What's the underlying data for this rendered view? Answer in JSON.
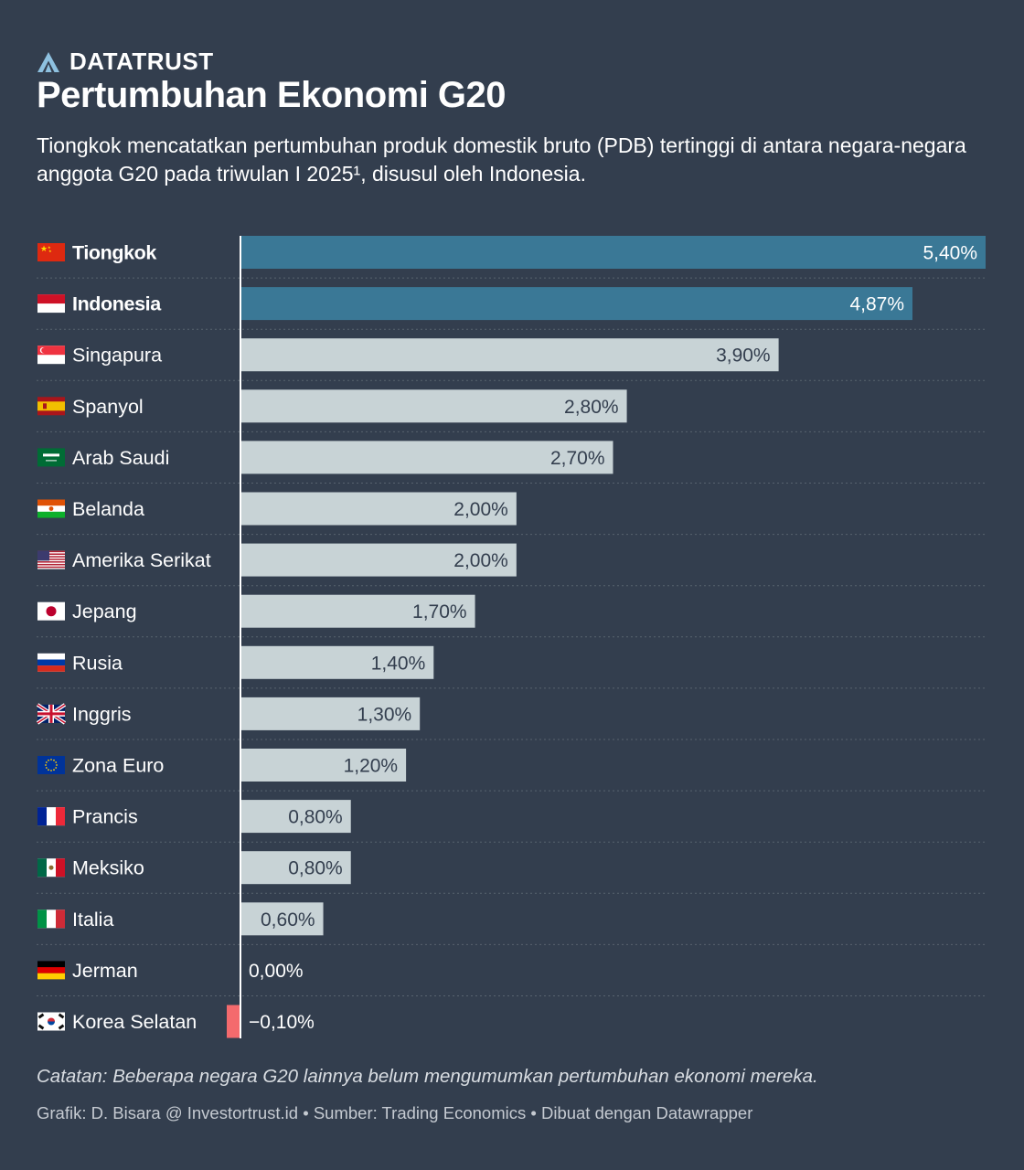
{
  "header": {
    "brand": "DATATRUST",
    "brand_icon": "delta-logo-icon",
    "title": "Pertumbuhan Ekonomi G20",
    "subtitle": "Tiongkok mencatatkan pertumbuhan produk domestik bruto (PDB) tertinggi di antara negara-negara anggota G20 pada triwulan I 2025¹, disusul oleh Indonesia."
  },
  "chart_data": {
    "type": "bar",
    "orientation": "horizontal",
    "unit": "%",
    "decimal_separator": ",",
    "categories": [
      "Tiongkok",
      "Indonesia",
      "Singapura",
      "Spanyol",
      "Arab Saudi",
      "Belanda",
      "Amerika Serikat",
      "Jepang",
      "Rusia",
      "Inggris",
      "Zona Euro",
      "Prancis",
      "Meksiko",
      "Italia",
      "Jerman",
      "Korea Selatan"
    ],
    "values": [
      5.4,
      4.87,
      3.9,
      2.8,
      2.7,
      2.0,
      2.0,
      1.7,
      1.4,
      1.3,
      1.2,
      0.8,
      0.8,
      0.6,
      0.0,
      -0.1
    ],
    "value_labels": [
      "5,40%",
      "4,87%",
      "3,90%",
      "2,80%",
      "2,70%",
      "2,00%",
      "2,00%",
      "1,70%",
      "1,40%",
      "1,30%",
      "1,20%",
      "0,80%",
      "0,80%",
      "0,60%",
      "0,00%",
      "−0,10%"
    ],
    "highlighted": [
      "Tiongkok",
      "Indonesia"
    ],
    "flag_icons": [
      "china-flag-icon",
      "indonesia-flag-icon",
      "singapore-flag-icon",
      "spain-flag-icon",
      "saudi-arabia-flag-icon",
      "niger-flag-icon",
      "usa-flag-icon",
      "japan-flag-icon",
      "russia-flag-icon",
      "uk-flag-icon",
      "eu-flag-icon",
      "france-flag-icon",
      "mexico-flag-icon",
      "italy-flag-icon",
      "germany-flag-icon",
      "south-korea-flag-icon"
    ],
    "xlim": [
      -0.1,
      5.4
    ],
    "colors": {
      "highlight": "#3a7896",
      "default": "#c8d3d6",
      "negative": "#f46a6d",
      "background": "#333e4e"
    }
  },
  "footer": {
    "note": "Catatan: Beberapa negara G20 lainnya belum mengumumkan pertumbuhan ekonomi mereka.",
    "credits": "Grafik: D. Bisara @ Investortrust.id • Sumber: Trading Economics • Dibuat dengan Datawrapper"
  }
}
